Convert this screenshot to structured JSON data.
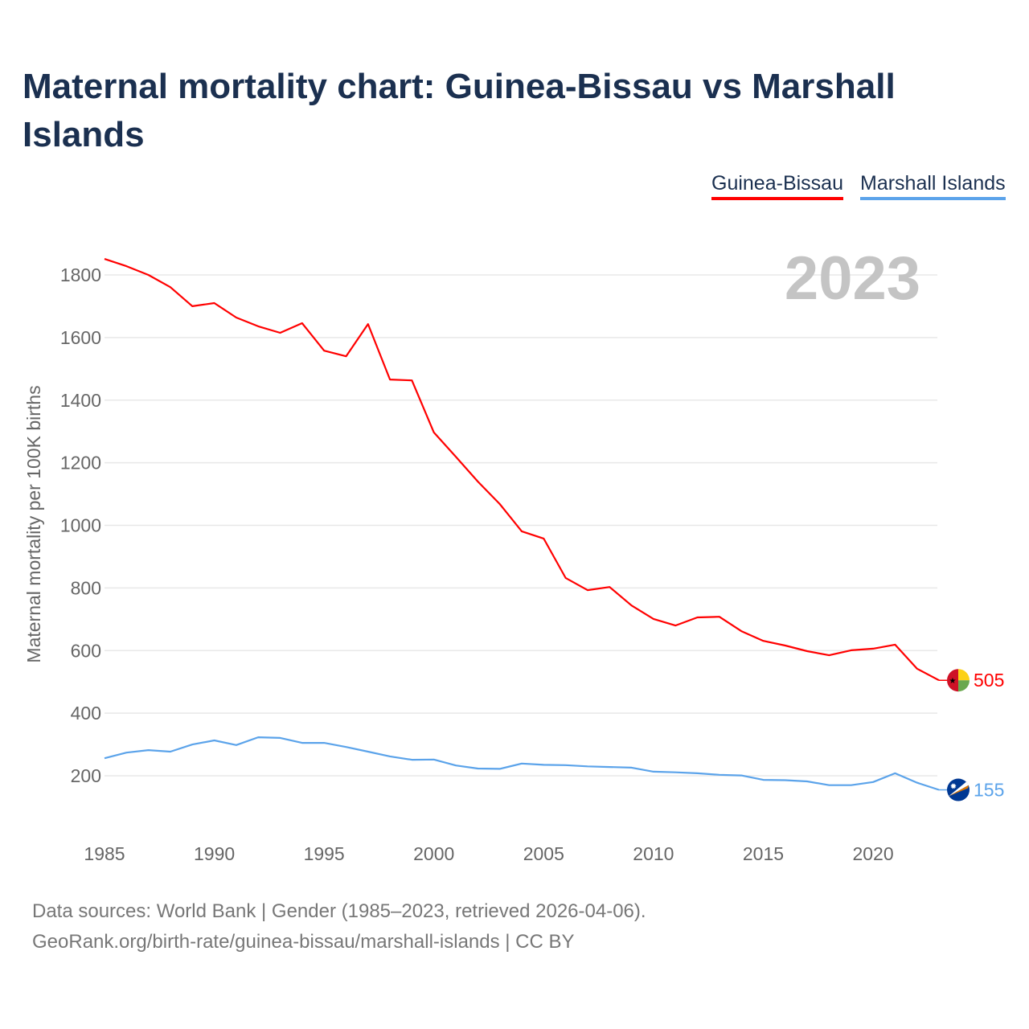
{
  "title": "Maternal mortality chart: Guinea-Bissau vs Marshall Islands",
  "footer": {
    "sources": "Data sources: World Bank | Gender (1985–2023, retrieved 2026-04-06).",
    "link": "GeoRank.org/birth-rate/guinea-bissau/marshall-islands | CC BY"
  },
  "chart_data": {
    "type": "line",
    "title": "Maternal mortality chart: Guinea-Bissau vs Marshall Islands",
    "xlabel": "",
    "ylabel": "Maternal mortality per 100K births",
    "year_label": "2023",
    "xlim": [
      1985,
      2023
    ],
    "ylim": [
      100,
      1900
    ],
    "x_ticks": [
      1985,
      1990,
      1995,
      2000,
      2005,
      2010,
      2015,
      2020
    ],
    "y_ticks": [
      200,
      400,
      600,
      800,
      1000,
      1200,
      1400,
      1600,
      1800
    ],
    "grid": true,
    "legend_position": "top-right",
    "x": [
      1985,
      1986,
      1987,
      1988,
      1989,
      1990,
      1991,
      1992,
      1993,
      1994,
      1995,
      1996,
      1997,
      1998,
      1999,
      2000,
      2001,
      2002,
      2003,
      2004,
      2005,
      2006,
      2007,
      2008,
      2009,
      2010,
      2011,
      2012,
      2013,
      2014,
      2015,
      2016,
      2017,
      2018,
      2019,
      2020,
      2021,
      2022,
      2023
    ],
    "series": [
      {
        "name": "Guinea-Bissau",
        "color": "#ff0000",
        "end_label": "505",
        "values": [
          1851,
          1828,
          1800,
          1761,
          1700,
          1710,
          1664,
          1636,
          1615,
          1646,
          1558,
          1540,
          1643,
          1466,
          1463,
          1297,
          1219,
          1140,
          1068,
          981,
          958,
          832,
          793,
          803,
          744,
          701,
          680,
          706,
          708,
          662,
          631,
          616,
          598,
          585,
          601,
          606,
          619,
          542,
          505
        ]
      },
      {
        "name": "Marshall Islands",
        "color": "#5ba3ea",
        "end_label": "155",
        "values": [
          256,
          274,
          282,
          277,
          300,
          313,
          298,
          323,
          321,
          305,
          305,
          292,
          277,
          262,
          251,
          252,
          233,
          223,
          222,
          239,
          235,
          234,
          230,
          228,
          226,
          213,
          211,
          208,
          203,
          201,
          187,
          186,
          182,
          170,
          170,
          180,
          208,
          178,
          155
        ]
      }
    ]
  }
}
